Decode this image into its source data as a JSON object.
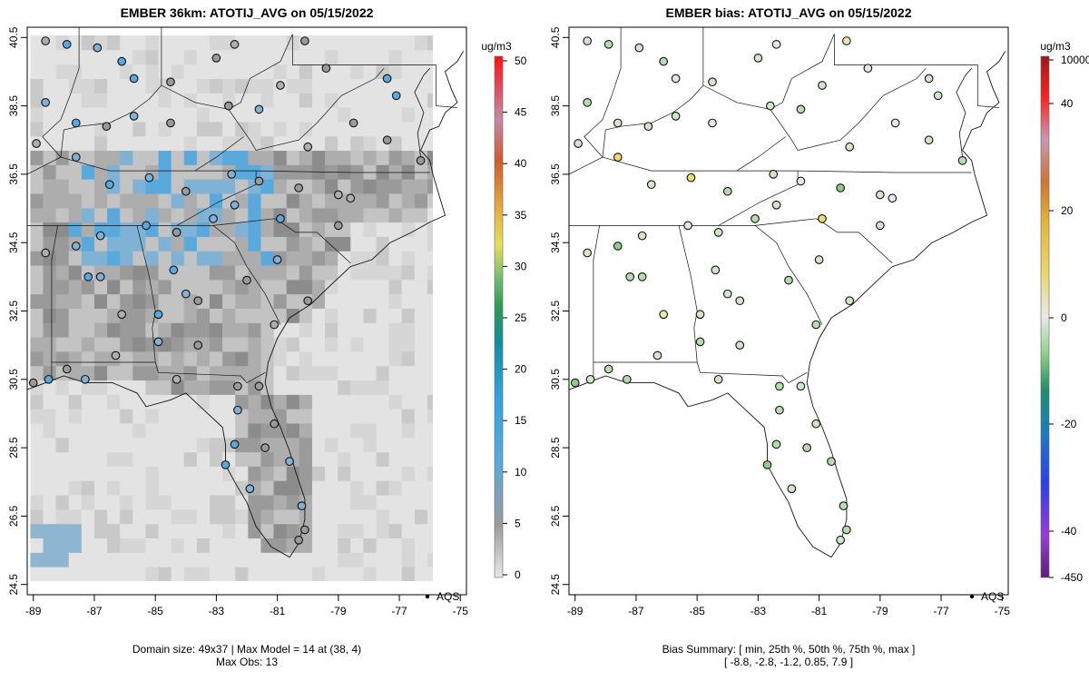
{
  "left_panel": {
    "title": "EMBER 36km: ATOTIJ_AVG on 05/15/2022",
    "footer_line1": "Domain size: 49x37 | Max Model = 14 at (38, 4)",
    "footer_line2": "Max Obs: 13",
    "legend_label": "AQS",
    "colorbar_unit": "ug/m3",
    "colorbar_ticks": [
      "0",
      "5",
      "10",
      "15",
      "20",
      "25",
      "30",
      "35",
      "40",
      "45",
      "50"
    ],
    "colorbar_values": [
      0,
      5,
      10,
      15,
      20,
      25,
      30,
      35,
      40,
      45,
      50
    ]
  },
  "right_panel": {
    "title": "EMBER bias: ATOTIJ_AVG on 05/15/2022",
    "footer_line1": "Bias Summary: [ min, 25th %, 50th %, 75th %, max ]",
    "footer_line2": "[ -8.8,   -2.8,   -1.2,   0.85,   7.9 ]",
    "legend_label": "AQS",
    "colorbar_unit": "ug/m3",
    "colorbar_ticks": [
      "-450",
      "-40",
      "-20",
      "0",
      "20",
      "40",
      "10000"
    ],
    "colorbar_values": [
      -450,
      -40,
      -20,
      0,
      20,
      40,
      10000
    ]
  },
  "axes": {
    "x_ticks": [
      "-89",
      "-87",
      "-85",
      "-83",
      "-81",
      "-79",
      "-77",
      "-75"
    ],
    "x_values": [
      -89,
      -87,
      -85,
      -83,
      -81,
      -79,
      -77,
      -75
    ],
    "y_ticks": [
      "24.5",
      "26.5",
      "28.5",
      "30.5",
      "32.5",
      "34.5",
      "36.5",
      "38.5",
      "40.5"
    ],
    "y_values": [
      24.5,
      26.5,
      28.5,
      30.5,
      32.5,
      34.5,
      36.5,
      38.5,
      40.5
    ],
    "lon_range": [
      -89.2,
      -74.8
    ],
    "lat_range": [
      24.2,
      40.8
    ]
  },
  "colors": {
    "model_low": "#d9d9d9",
    "model_mid": "#9a9a9a",
    "model_high": "#5aa9dc",
    "bias_neutral": "#e6e6e6",
    "bias_green": "#b5dcb0",
    "bias_yellow": "#f0dc6a"
  },
  "chart_data": {
    "type": "map",
    "domain_size": "49x37",
    "max_model": 14,
    "max_model_cell": [
      38,
      4
    ],
    "max_obs": 13,
    "bias_summary": {
      "min": -8.8,
      "p25": -2.8,
      "p50": -1.2,
      "p75": 0.85,
      "max": 7.9
    },
    "model_range": [
      0,
      50
    ],
    "sites": [
      {
        "lon": -88.6,
        "lat": 40.4,
        "obs": 6,
        "bias": -2
      },
      {
        "lon": -87.9,
        "lat": 40.3,
        "obs": 11,
        "bias": -3
      },
      {
        "lon": -86.9,
        "lat": 40.2,
        "obs": 9,
        "bias": -2
      },
      {
        "lon": -86.1,
        "lat": 39.8,
        "obs": 12,
        "bias": -4
      },
      {
        "lon": -85.7,
        "lat": 39.3,
        "obs": 11,
        "bias": 1
      },
      {
        "lon": -84.5,
        "lat": 39.2,
        "obs": 8,
        "bias": -1
      },
      {
        "lon": -83.0,
        "lat": 39.9,
        "obs": 7,
        "bias": -1
      },
      {
        "lon": -82.4,
        "lat": 40.3,
        "obs": 6,
        "bias": 0
      },
      {
        "lon": -80.1,
        "lat": 40.4,
        "obs": 7,
        "bias": 3
      },
      {
        "lon": -80.9,
        "lat": 39.1,
        "obs": 6,
        "bias": -1
      },
      {
        "lon": -79.4,
        "lat": 39.6,
        "obs": 8,
        "bias": 0
      },
      {
        "lon": -77.4,
        "lat": 39.3,
        "obs": 11,
        "bias": -2
      },
      {
        "lon": -77.1,
        "lat": 38.8,
        "obs": 12,
        "bias": -1
      },
      {
        "lon": -78.5,
        "lat": 38.0,
        "obs": 8,
        "bias": 0
      },
      {
        "lon": -77.4,
        "lat": 37.5,
        "obs": 7,
        "bias": -1
      },
      {
        "lon": -76.3,
        "lat": 36.9,
        "obs": 7,
        "bias": -3
      },
      {
        "lon": -80.0,
        "lat": 37.3,
        "obs": 6,
        "bias": -2
      },
      {
        "lon": -81.6,
        "lat": 38.4,
        "obs": 9,
        "bias": -4
      },
      {
        "lon": -82.6,
        "lat": 38.5,
        "obs": 7,
        "bias": -1
      },
      {
        "lon": -84.5,
        "lat": 38.0,
        "obs": 8,
        "bias": 0
      },
      {
        "lon": -85.7,
        "lat": 38.2,
        "obs": 10,
        "bias": -1
      },
      {
        "lon": -86.6,
        "lat": 37.9,
        "obs": 8,
        "bias": -2
      },
      {
        "lon": -87.6,
        "lat": 38.0,
        "obs": 12,
        "bias": -2
      },
      {
        "lon": -88.6,
        "lat": 38.6,
        "obs": 9,
        "bias": -3
      },
      {
        "lon": -88.9,
        "lat": 37.4,
        "obs": 6,
        "bias": -1
      },
      {
        "lon": -87.6,
        "lat": 37.0,
        "obs": 10,
        "bias": 5
      },
      {
        "lon": -86.5,
        "lat": 36.2,
        "obs": 12,
        "bias": -2
      },
      {
        "lon": -85.2,
        "lat": 36.4,
        "obs": 9,
        "bias": 5
      },
      {
        "lon": -84.0,
        "lat": 36.0,
        "obs": 8,
        "bias": -3
      },
      {
        "lon": -82.5,
        "lat": 36.5,
        "obs": 9,
        "bias": -1
      },
      {
        "lon": -81.6,
        "lat": 36.3,
        "obs": 8,
        "bias": 0
      },
      {
        "lon": -80.3,
        "lat": 36.1,
        "obs": 7,
        "bias": -5
      },
      {
        "lon": -79.0,
        "lat": 35.9,
        "obs": 6,
        "bias": -1
      },
      {
        "lon": -78.6,
        "lat": 35.8,
        "obs": 6,
        "bias": 0
      },
      {
        "lon": -79.0,
        "lat": 35.0,
        "obs": 7,
        "bias": -2
      },
      {
        "lon": -80.9,
        "lat": 35.2,
        "obs": 11,
        "bias": 7
      },
      {
        "lon": -82.4,
        "lat": 35.6,
        "obs": 10,
        "bias": -1
      },
      {
        "lon": -83.1,
        "lat": 35.2,
        "obs": 9,
        "bias": -3
      },
      {
        "lon": -84.3,
        "lat": 34.8,
        "obs": 8,
        "bias": -2
      },
      {
        "lon": -85.3,
        "lat": 35.0,
        "obs": 12,
        "bias": 0
      },
      {
        "lon": -86.8,
        "lat": 34.7,
        "obs": 10,
        "bias": -1
      },
      {
        "lon": -87.6,
        "lat": 34.4,
        "obs": 9,
        "bias": -5
      },
      {
        "lon": -88.6,
        "lat": 34.2,
        "obs": 6,
        "bias": -2
      },
      {
        "lon": -87.2,
        "lat": 33.5,
        "obs": 11,
        "bias": -4
      },
      {
        "lon": -86.8,
        "lat": 33.5,
        "obs": 10,
        "bias": -3
      },
      {
        "lon": -86.1,
        "lat": 32.4,
        "obs": 5,
        "bias": 3
      },
      {
        "lon": -84.4,
        "lat": 33.7,
        "obs": 12,
        "bias": -2
      },
      {
        "lon": -84.0,
        "lat": 33.0,
        "obs": 9,
        "bias": -1
      },
      {
        "lon": -83.6,
        "lat": 32.8,
        "obs": 8,
        "bias": -1
      },
      {
        "lon": -82.0,
        "lat": 33.4,
        "obs": 7,
        "bias": -3
      },
      {
        "lon": -81.0,
        "lat": 34.0,
        "obs": 9,
        "bias": -2
      },
      {
        "lon": -80.0,
        "lat": 32.8,
        "obs": 7,
        "bias": -2
      },
      {
        "lon": -81.1,
        "lat": 32.1,
        "obs": 6,
        "bias": -3
      },
      {
        "lon": -84.9,
        "lat": 32.4,
        "obs": 11,
        "bias": -1
      },
      {
        "lon": -83.6,
        "lat": 31.5,
        "obs": 7,
        "bias": -2
      },
      {
        "lon": -84.9,
        "lat": 31.6,
        "obs": 9,
        "bias": -3
      },
      {
        "lon": -86.3,
        "lat": 31.2,
        "obs": 5,
        "bias": -2
      },
      {
        "lon": -87.9,
        "lat": 30.8,
        "obs": 8,
        "bias": -3
      },
      {
        "lon": -88.5,
        "lat": 30.5,
        "obs": 11,
        "bias": -2
      },
      {
        "lon": -89.0,
        "lat": 30.4,
        "obs": 8,
        "bias": -6
      },
      {
        "lon": -87.3,
        "lat": 30.5,
        "obs": 9,
        "bias": -4
      },
      {
        "lon": -84.3,
        "lat": 30.5,
        "obs": 6,
        "bias": -1
      },
      {
        "lon": -82.3,
        "lat": 30.3,
        "obs": 7,
        "bias": -3
      },
      {
        "lon": -81.6,
        "lat": 30.3,
        "obs": 8,
        "bias": -2
      },
      {
        "lon": -82.3,
        "lat": 29.6,
        "obs": 10,
        "bias": -3
      },
      {
        "lon": -81.1,
        "lat": 29.2,
        "obs": 7,
        "bias": -2
      },
      {
        "lon": -82.4,
        "lat": 28.6,
        "obs": 11,
        "bias": -4
      },
      {
        "lon": -81.4,
        "lat": 28.5,
        "obs": 8,
        "bias": -3
      },
      {
        "lon": -82.7,
        "lat": 28.0,
        "obs": 12,
        "bias": -5
      },
      {
        "lon": -80.6,
        "lat": 28.1,
        "obs": 9,
        "bias": -3
      },
      {
        "lon": -81.9,
        "lat": 27.3,
        "obs": 10,
        "bias": -2
      },
      {
        "lon": -80.2,
        "lat": 26.8,
        "obs": 9,
        "bias": -3
      },
      {
        "lon": -80.1,
        "lat": 26.1,
        "obs": 8,
        "bias": -4
      },
      {
        "lon": -80.3,
        "lat": 25.8,
        "obs": 7,
        "bias": -2
      }
    ]
  }
}
